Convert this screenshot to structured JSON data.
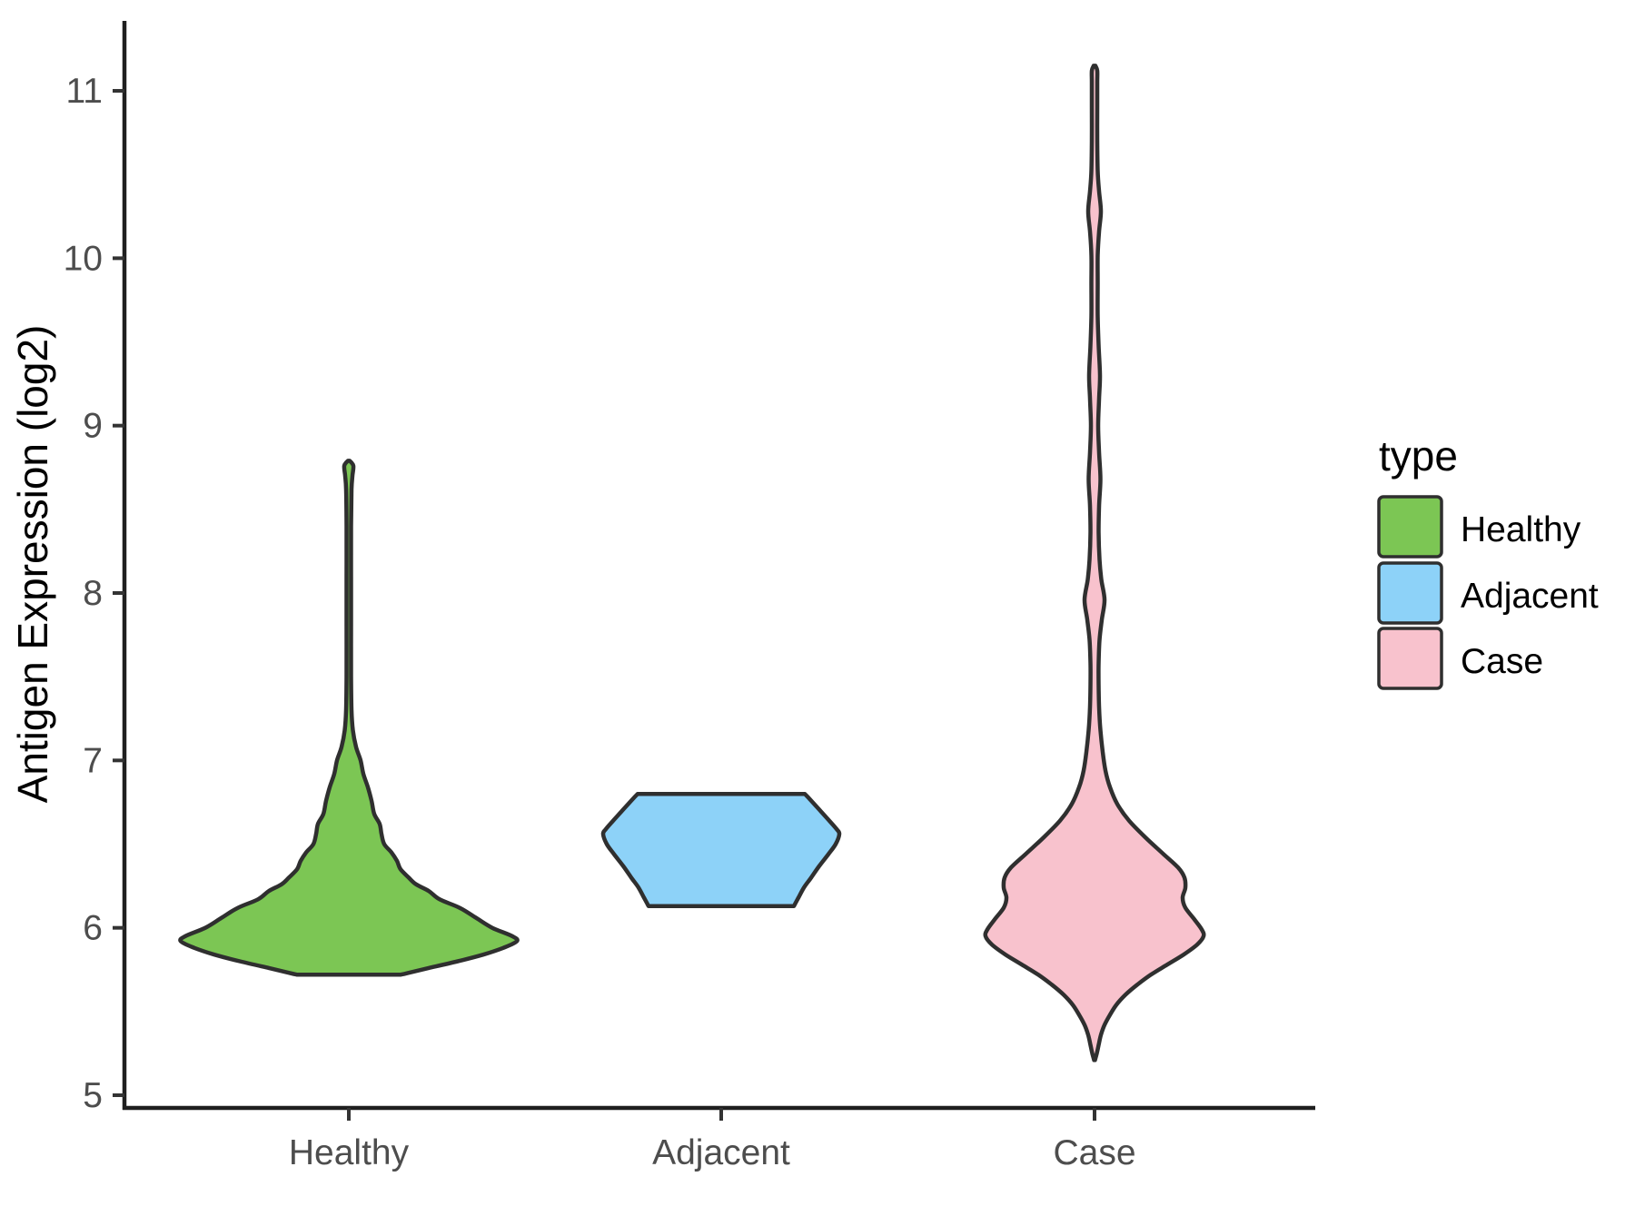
{
  "chart_data": {
    "type": "violin",
    "title": "",
    "xlabel": "",
    "ylabel": "Antigen Expression (log2)",
    "categories": [
      "Healthy",
      "Adjacent",
      "Case"
    ],
    "y_ticks": [
      5,
      6,
      7,
      8,
      9,
      10,
      11
    ],
    "ylim": [
      4.92,
      11.42
    ],
    "grid": false,
    "legend": {
      "title": "type",
      "position": "right",
      "entries": [
        {
          "label": "Healthy",
          "color": "#7cc654"
        },
        {
          "label": "Adjacent",
          "color": "#8dd2f8"
        },
        {
          "label": "Case",
          "color": "#f8c2cd"
        }
      ]
    },
    "series": [
      {
        "name": "Healthy",
        "fill": "#7cc654",
        "value_range": [
          5.72,
          8.79
        ],
        "widest_at": 5.94,
        "profile": [
          [
            8.79,
            1
          ],
          [
            8.76,
            5
          ],
          [
            8.7,
            4
          ],
          [
            8.62,
            3
          ],
          [
            8.4,
            2.5
          ],
          [
            8.1,
            2.5
          ],
          [
            7.8,
            2.5
          ],
          [
            7.5,
            2.5
          ],
          [
            7.3,
            3
          ],
          [
            7.18,
            4.5
          ],
          [
            7.08,
            8
          ],
          [
            7.0,
            13
          ],
          [
            6.92,
            16
          ],
          [
            6.84,
            21
          ],
          [
            6.76,
            25
          ],
          [
            6.68,
            28
          ],
          [
            6.62,
            34
          ],
          [
            6.56,
            36
          ],
          [
            6.5,
            39
          ],
          [
            6.45,
            47
          ],
          [
            6.4,
            53
          ],
          [
            6.35,
            57
          ],
          [
            6.3,
            66
          ],
          [
            6.26,
            74
          ],
          [
            6.22,
            88
          ],
          [
            6.17,
            100
          ],
          [
            6.12,
            122
          ],
          [
            6.06,
            140
          ],
          [
            6.0,
            158
          ],
          [
            5.95,
            180
          ],
          [
            5.92,
            185
          ],
          [
            5.88,
            170
          ],
          [
            5.84,
            148
          ],
          [
            5.8,
            120
          ],
          [
            5.76,
            88
          ],
          [
            5.73,
            65
          ],
          [
            5.72,
            57
          ]
        ]
      },
      {
        "name": "Adjacent",
        "fill": "#8dd2f8",
        "value_range": [
          6.13,
          6.8
        ],
        "widest_at": 6.57,
        "profile": [
          [
            6.8,
            92
          ],
          [
            6.76,
            99
          ],
          [
            6.7,
            109
          ],
          [
            6.64,
            119
          ],
          [
            6.59,
            127
          ],
          [
            6.56,
            130
          ],
          [
            6.5,
            126
          ],
          [
            6.44,
            118
          ],
          [
            6.37,
            108
          ],
          [
            6.3,
            99
          ],
          [
            6.24,
            91
          ],
          [
            6.18,
            85
          ],
          [
            6.14,
            81
          ],
          [
            6.13,
            80
          ]
        ]
      },
      {
        "name": "Case",
        "fill": "#f8c2cd",
        "value_range": [
          5.21,
          11.15
        ],
        "widest_at": 5.97,
        "profile": [
          [
            11.15,
            1
          ],
          [
            11.12,
            3
          ],
          [
            11.05,
            3
          ],
          [
            10.9,
            3
          ],
          [
            10.7,
            3
          ],
          [
            10.52,
            3.5
          ],
          [
            10.4,
            5
          ],
          [
            10.28,
            7
          ],
          [
            10.16,
            5
          ],
          [
            10.02,
            3.5
          ],
          [
            9.85,
            3.5
          ],
          [
            9.65,
            3.5
          ],
          [
            9.48,
            4.5
          ],
          [
            9.3,
            6
          ],
          [
            9.16,
            5
          ],
          [
            9.0,
            4
          ],
          [
            8.84,
            5
          ],
          [
            8.68,
            6.5
          ],
          [
            8.52,
            5
          ],
          [
            8.36,
            4.5
          ],
          [
            8.2,
            5.5
          ],
          [
            8.08,
            7.5
          ],
          [
            7.96,
            11
          ],
          [
            7.84,
            8
          ],
          [
            7.72,
            5.5
          ],
          [
            7.58,
            4.5
          ],
          [
            7.45,
            4.5
          ],
          [
            7.32,
            5
          ],
          [
            7.18,
            6.5
          ],
          [
            7.05,
            9
          ],
          [
            6.94,
            12
          ],
          [
            6.84,
            17
          ],
          [
            6.74,
            25
          ],
          [
            6.64,
            38
          ],
          [
            6.54,
            56
          ],
          [
            6.44,
            76
          ],
          [
            6.36,
            92
          ],
          [
            6.3,
            99
          ],
          [
            6.24,
            100
          ],
          [
            6.18,
            97
          ],
          [
            6.12,
            100
          ],
          [
            6.05,
            110
          ],
          [
            5.99,
            118
          ],
          [
            5.95,
            120
          ],
          [
            5.9,
            113
          ],
          [
            5.84,
            98
          ],
          [
            5.78,
            80
          ],
          [
            5.72,
            62
          ],
          [
            5.66,
            47
          ],
          [
            5.6,
            34
          ],
          [
            5.54,
            24
          ],
          [
            5.48,
            17
          ],
          [
            5.42,
            11
          ],
          [
            5.36,
            7
          ],
          [
            5.3,
            4.5
          ],
          [
            5.25,
            2.5
          ],
          [
            5.21,
            0.5
          ]
        ]
      }
    ]
  },
  "colors": {
    "background": "#ffffff",
    "outline": "#2f2f2f",
    "axis_line": "#1f1f1f",
    "tick_mark": "#333333",
    "tick_label": "#4d4d4d",
    "text": "#000000"
  }
}
